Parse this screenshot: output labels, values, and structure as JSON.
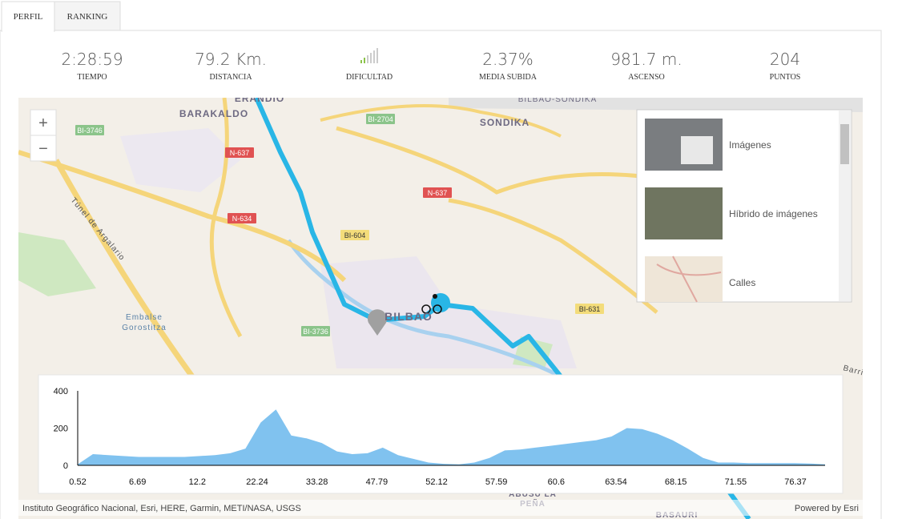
{
  "tabs": [
    "PERFIL",
    "RANKING"
  ],
  "stats": [
    {
      "value": "2:28:59",
      "label": "TIEMPO"
    },
    {
      "value": "79.2 Km.",
      "label": "DISTANCIA"
    },
    {
      "label": "DIFICULTAD"
    },
    {
      "value": "2.37%",
      "label": "MEDIA SUBIDA"
    },
    {
      "value": "981.7 m.",
      "label": "ASCENSO"
    },
    {
      "value": "204",
      "label": "PUNTOS"
    }
  ],
  "map": {
    "zoom": [
      "+",
      "−"
    ],
    "places": [
      "ERANDIO",
      "BARAKALDO",
      "SONDIKA",
      "BILBAO-SONDIKA",
      "BILBAO",
      "Túnel de Argalario",
      "Embalse",
      "Gorostitza",
      "Barria",
      "ABUSU LA",
      "PEÑA",
      "BASAURI"
    ],
    "roads": [
      "BI-3746",
      "N-637",
      "BI-2704",
      "N-634",
      "BI-604",
      "N-637",
      "BI-631",
      "BI-3736"
    ],
    "basemaps": [
      "Imágenes",
      "Híbrido de imágenes",
      "Calles"
    ],
    "attribution": "Instituto Geográfico Nacional, Esri, HERE, Garmin, METI/NASA, USGS",
    "powered_by": "Powered by Esri"
  },
  "chart_data": {
    "type": "area",
    "x_labels": [
      "0.52",
      "6.69",
      "12.2",
      "22.24",
      "33.28",
      "47.79",
      "52.12",
      "57.59",
      "60.6",
      "63.54",
      "68.15",
      "71.55",
      "76.37"
    ],
    "values": [
      5,
      60,
      55,
      50,
      45,
      45,
      45,
      45,
      50,
      55,
      65,
      90,
      230,
      300,
      160,
      145,
      120,
      75,
      60,
      65,
      95,
      55,
      35,
      15,
      8,
      5,
      15,
      40,
      80,
      85,
      95,
      105,
      115,
      125,
      135,
      155,
      200,
      195,
      170,
      135,
      90,
      40,
      15,
      15,
      12,
      12,
      12,
      12,
      10,
      5
    ],
    "ylim": [
      0,
      400
    ],
    "yticks": [
      0,
      200,
      400
    ],
    "color": "#80c2ef"
  }
}
